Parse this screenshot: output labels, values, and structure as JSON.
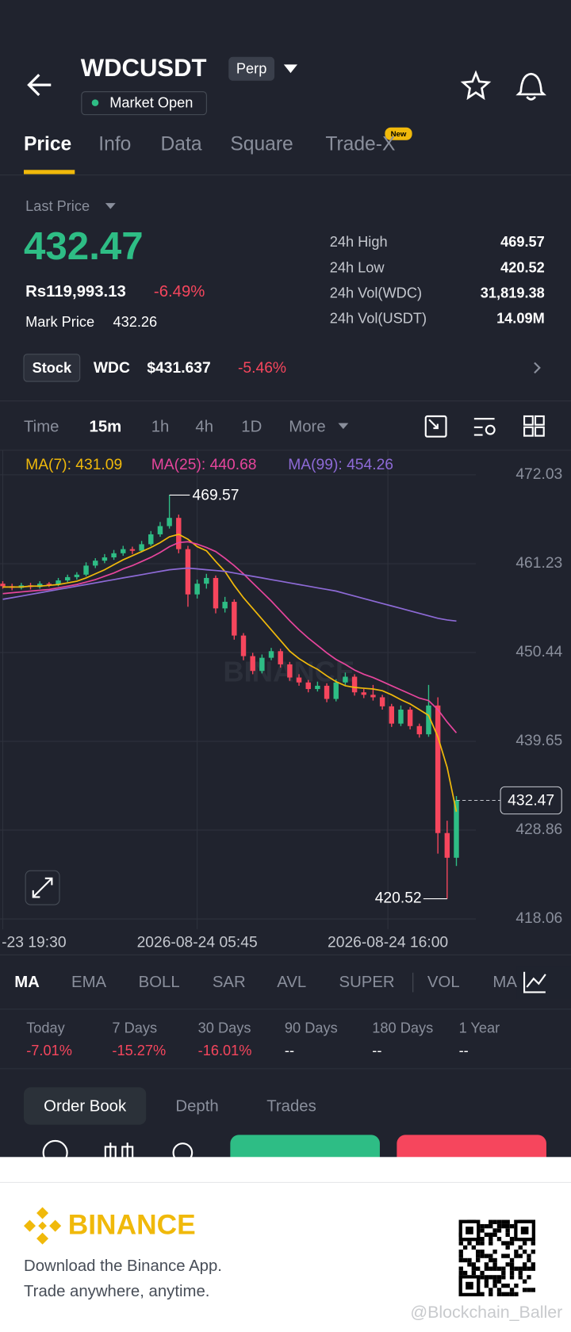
{
  "header": {
    "symbol": "WDCUSDT",
    "contract": "Perp",
    "status": "Market Open"
  },
  "tabs": [
    "Price",
    "Info",
    "Data",
    "Square",
    "Trade-X"
  ],
  "tab_badge": "New",
  "price": {
    "label": "Last Price",
    "last": "432.47",
    "fiat": "Rs119,993.13",
    "change": "-6.49%",
    "mark_label": "Mark Price",
    "mark_value": "432.26"
  },
  "stats": [
    {
      "label": "24h High",
      "value": "469.57"
    },
    {
      "label": "24h Low",
      "value": "420.52"
    },
    {
      "label": "24h Vol(WDC)",
      "value": "31,819.38"
    },
    {
      "label": "24h Vol(USDT)",
      "value": "14.09M"
    }
  ],
  "stock": {
    "badge": "Stock",
    "ticker": "WDC",
    "price": "$431.637",
    "change": "-5.46%"
  },
  "intervals": [
    "Time",
    "15m",
    "1h",
    "4h",
    "1D",
    "More"
  ],
  "chart_data": {
    "type": "candlestick",
    "watermark": "BINANCE",
    "up_color": "#2ebd85",
    "down_color": "#f6465d",
    "open": [
      458.8,
      458.5,
      458.3,
      458.6,
      458.4,
      458.8,
      458.7,
      459.2,
      459.6,
      459.9,
      461.0,
      461.6,
      462.0,
      462.5,
      463.0,
      462.8,
      463.6,
      464.8,
      465.8,
      466.8,
      463.0,
      457.5,
      458.8,
      459.5,
      455.8,
      456.6,
      452.5,
      450.0,
      448.2,
      449.8,
      450.6,
      449.0,
      447.4,
      446.8,
      446.0,
      446.4,
      444.8,
      446.8,
      447.5,
      445.6,
      445.3,
      445.0,
      443.9,
      441.8,
      443.5,
      441.5,
      440.5,
      444.0,
      428.5,
      425.5
    ],
    "high": [
      459.1,
      458.8,
      458.9,
      458.9,
      459.1,
      459.0,
      459.5,
      459.9,
      460.2,
      461.4,
      461.9,
      462.4,
      462.9,
      463.4,
      463.3,
      464.0,
      465.2,
      466.3,
      469.57,
      467.2,
      463.4,
      459.3,
      460.0,
      459.8,
      457.2,
      456.9,
      452.8,
      450.4,
      450.2,
      451.0,
      450.9,
      449.3,
      447.8,
      447.1,
      446.9,
      446.7,
      447.2,
      448.0,
      447.8,
      446.0,
      446.5,
      445.3,
      444.2,
      444.0,
      443.8,
      441.8,
      446.5,
      445.0,
      430.0,
      433.0
    ],
    "low": [
      458.2,
      458.0,
      458.1,
      458.1,
      458.2,
      458.4,
      458.5,
      459.0,
      459.3,
      459.7,
      460.7,
      461.3,
      461.7,
      462.2,
      462.4,
      462.6,
      463.4,
      464.5,
      465.5,
      462.5,
      456.0,
      457.0,
      458.2,
      455.2,
      455.3,
      452.0,
      449.5,
      447.8,
      447.9,
      449.5,
      448.6,
      447.0,
      446.4,
      445.6,
      445.7,
      444.4,
      444.5,
      446.5,
      445.2,
      444.9,
      444.6,
      443.5,
      441.4,
      441.5,
      441.1,
      440.1,
      440.2,
      426.0,
      420.52,
      424.5
    ],
    "close": [
      458.5,
      458.3,
      458.6,
      458.4,
      458.8,
      458.7,
      459.2,
      459.6,
      459.9,
      461.0,
      461.6,
      462.0,
      462.5,
      463.0,
      462.8,
      463.6,
      464.8,
      465.8,
      466.8,
      463.0,
      457.5,
      458.8,
      459.5,
      455.8,
      456.6,
      452.5,
      450.0,
      448.2,
      449.8,
      450.6,
      449.0,
      447.4,
      446.8,
      446.0,
      446.4,
      444.8,
      446.8,
      447.5,
      445.6,
      445.3,
      445.0,
      443.9,
      441.8,
      443.5,
      441.5,
      440.5,
      444.0,
      428.5,
      425.5,
      432.47
    ],
    "series": [
      {
        "name": "MA(7): 431.09",
        "color": "#f0b90b",
        "values": [
          458.4,
          458.4,
          458.4,
          458.5,
          458.5,
          458.6,
          458.7,
          458.9,
          459.1,
          459.5,
          460.0,
          460.5,
          461.1,
          461.7,
          462.2,
          462.7,
          463.2,
          463.8,
          464.5,
          464.8,
          464.2,
          463.3,
          462.8,
          461.5,
          460.3,
          458.6,
          457.1,
          455.8,
          454.5,
          453.2,
          451.9,
          450.6,
          449.7,
          449.0,
          448.4,
          447.6,
          446.9,
          446.4,
          446.2,
          446.1,
          446.0,
          445.8,
          445.3,
          444.7,
          444.2,
          443.5,
          442.8,
          440.2,
          436.5,
          431.09
        ]
      },
      {
        "name": "MA(25): 440.68",
        "color": "#e6459c",
        "values": [
          457.6,
          457.7,
          457.8,
          457.9,
          458.0,
          458.1,
          458.3,
          458.5,
          458.7,
          459.0,
          459.3,
          459.7,
          460.1,
          460.6,
          461.0,
          461.5,
          462.0,
          462.6,
          463.3,
          463.8,
          463.9,
          463.6,
          463.2,
          462.7,
          461.9,
          461.0,
          460.0,
          458.9,
          457.8,
          456.7,
          455.5,
          454.3,
          453.2,
          452.2,
          451.3,
          450.4,
          449.6,
          449.0,
          448.3,
          447.8,
          447.4,
          446.9,
          446.4,
          445.9,
          445.4,
          444.9,
          444.6,
          443.5,
          442.0,
          440.68
        ]
      },
      {
        "name": "MA(99): 454.26",
        "color": "#8d6ad6",
        "values": [
          456.9,
          457.1,
          457.3,
          457.5,
          457.7,
          457.9,
          458.1,
          458.3,
          458.5,
          458.7,
          458.9,
          459.1,
          459.3,
          459.5,
          459.7,
          459.9,
          460.1,
          460.3,
          460.5,
          460.6,
          460.7,
          460.6,
          460.5,
          460.4,
          460.3,
          460.1,
          459.9,
          459.7,
          459.5,
          459.3,
          459.1,
          458.9,
          458.7,
          458.5,
          458.3,
          458.1,
          457.9,
          457.6,
          457.3,
          457.0,
          456.7,
          456.4,
          456.1,
          455.8,
          455.5,
          455.2,
          454.9,
          454.6,
          454.4,
          454.26
        ]
      }
    ],
    "xlim": [
      -0.3,
      51.1
    ],
    "xticks": [
      {
        "value": 0,
        "label": "-23 19:30"
      },
      {
        "value": 21,
        "label": "2026-08-24 05:45"
      },
      {
        "value": 41.6,
        "label": "2026-08-24 16:00"
      }
    ],
    "ylim": [
      416.8,
      475.02
    ],
    "yticks": [
      472.03,
      461.23,
      450.44,
      439.65,
      428.86,
      418.06
    ],
    "grid": true
  },
  "indicators": [
    "MA",
    "EMA",
    "BOLL",
    "SAR",
    "AVL",
    "SUPER",
    "VOL",
    "MA"
  ],
  "performance": [
    {
      "period": "Today",
      "change": "-7.01%"
    },
    {
      "period": "7 Days",
      "change": "-15.27%"
    },
    {
      "period": "30 Days",
      "change": "-16.01%"
    },
    {
      "period": "90 Days",
      "change": "--"
    },
    {
      "period": "180 Days",
      "change": "--"
    },
    {
      "period": "1 Year",
      "change": "--"
    }
  ],
  "book_tabs": [
    "Order Book",
    "Depth",
    "Trades"
  ],
  "promo": {
    "brand": "BINANCE",
    "line1": "Download the Binance App.",
    "line2": "Trade anywhere, anytime.",
    "watermark": "@Blockchain_Baller"
  }
}
